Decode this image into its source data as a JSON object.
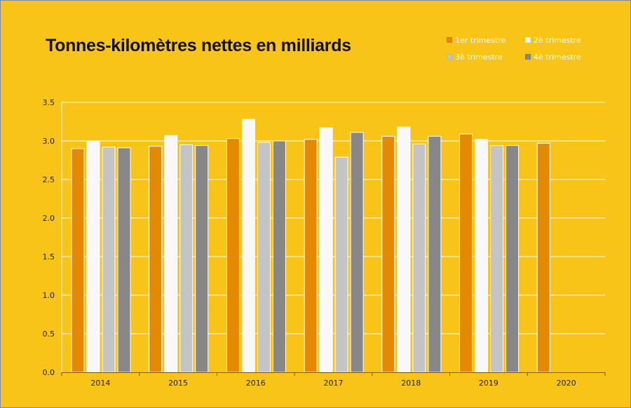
{
  "chart_data": {
    "type": "bar",
    "title": "Tonnes-kilomètres nettes en milliards",
    "xlabel": "",
    "ylabel": "",
    "categories": [
      "2014",
      "2015",
      "2016",
      "2017",
      "2018",
      "2019",
      "2020"
    ],
    "ylim": [
      0,
      3.5
    ],
    "yticks": [
      "0.0",
      "0.5",
      "1.0",
      "1.5",
      "2.0",
      "2.5",
      "3.0",
      "3.5"
    ],
    "grid": true,
    "legend_position": "top-right",
    "series": [
      {
        "name": "1er trimestre",
        "color": "#e38a00",
        "values": [
          2.9,
          2.93,
          3.03,
          3.02,
          3.06,
          3.09,
          2.97
        ]
      },
      {
        "name": "2è trimestre",
        "color": "#f8f8f8",
        "values": [
          2.99,
          3.07,
          3.28,
          3.17,
          3.18,
          3.02,
          null
        ]
      },
      {
        "name": "3è trimestre",
        "color": "#c4c4c4",
        "values": [
          2.92,
          2.95,
          2.98,
          2.79,
          2.96,
          2.94,
          null
        ]
      },
      {
        "name": "4è trimestre",
        "color": "#878787",
        "values": [
          2.91,
          2.94,
          3.0,
          3.11,
          3.06,
          2.94,
          null
        ]
      }
    ]
  }
}
